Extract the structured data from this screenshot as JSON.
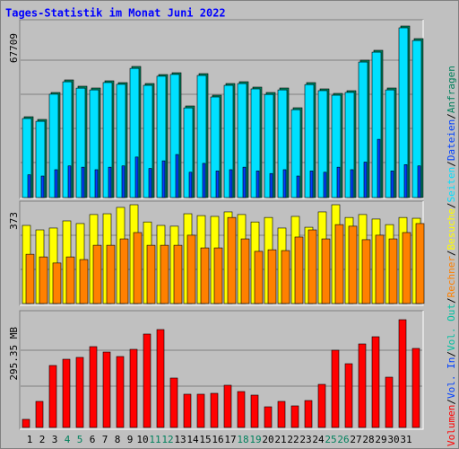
{
  "chart_data": [
    {
      "type": "bar",
      "title": "Tages-Statistik im Monat Juni 2022",
      "ylim": [
        0,
        67709
      ],
      "yticks": [
        67709
      ],
      "series": [
        {
          "name": "Anfragen",
          "color": "#00805c",
          "values": [
            31905,
            30842,
            41477,
            46440,
            43958,
            43249,
            46085,
            45376,
            51757,
            45022,
            48567,
            49276,
            36159,
            48921,
            40413,
            45022,
            45731,
            43604,
            41477,
            43249,
            35450,
            45376,
            42895,
            41122,
            42186,
            54239,
            58138,
            43249,
            67709,
            62747,
            null
          ]
        },
        {
          "name": "Dateien",
          "color": "#0040ff",
          "values": [
            9000,
            8500,
            11000,
            12500,
            12000,
            11000,
            12000,
            12500,
            16000,
            11500,
            14500,
            17000,
            10000,
            13500,
            10500,
            11000,
            12000,
            10500,
            9500,
            11000,
            8500,
            10500,
            10000,
            12000,
            11000,
            14000,
            23000,
            10500,
            13000,
            12500,
            null
          ]
        },
        {
          "name": "Seiten",
          "color": "#00e0ff",
          "values": [
            31200,
            30100,
            40800,
            45700,
            43200,
            42500,
            45400,
            44700,
            51000,
            44300,
            47900,
            48600,
            35400,
            48200,
            39700,
            44300,
            45000,
            42900,
            40700,
            42500,
            34700,
            44600,
            42200,
            40400,
            41500,
            53500,
            57400,
            42500,
            67000,
            62000,
            null
          ]
        }
      ]
    },
    {
      "type": "bar",
      "ylim": [
        0,
        373
      ],
      "yticks": [
        373
      ],
      "series": [
        {
          "name": "Besuche",
          "color": "#ffff00",
          "values": [
            295,
            278,
            285,
            312,
            302,
            336,
            339,
            363,
            373,
            308,
            295,
            292,
            339,
            332,
            329,
            346,
            336,
            308,
            325,
            285,
            329,
            288,
            346,
            373,
            325,
            336,
            319,
            298,
            325,
            322,
            null
          ]
        },
        {
          "name": "Rechner",
          "color": "#ff8000",
          "values": [
            186,
            176,
            153,
            176,
            166,
            220,
            220,
            244,
            268,
            220,
            220,
            220,
            258,
            210,
            210,
            325,
            244,
            197,
            203,
            200,
            251,
            278,
            244,
            298,
            292,
            241,
            258,
            244,
            268,
            302,
            null
          ]
        }
      ]
    },
    {
      "type": "bar",
      "ylim": [
        0,
        295.35
      ],
      "yticks": [
        {
          "value": 295.35,
          "label": "295.35 MB"
        }
      ],
      "categories": [
        "1",
        "2",
        "3",
        "4",
        "5",
        "6",
        "7",
        "8",
        "9",
        "10",
        "11",
        "12",
        "13",
        "14",
        "15",
        "16",
        "17",
        "18",
        "19",
        "20",
        "21",
        "22",
        "23",
        "24",
        "25",
        "26",
        "27",
        "28",
        "29",
        "30",
        "31"
      ],
      "highlight_color": "#00805c",
      "highlight_indices": [
        3,
        4,
        10,
        11,
        17,
        18,
        24,
        25
      ],
      "series": [
        {
          "name": "Volumen",
          "color": "#ff0000",
          "values": [
            22.2,
            71.4,
            169.8,
            187.0,
            192.0,
            221.5,
            206.7,
            194.4,
            214.1,
            256.0,
            268.3,
            135.4,
            91.1,
            91.1,
            93.5,
            115.7,
            98.4,
            88.6,
            56.6,
            71.4,
            59.1,
            73.8,
            118.1,
            211.7,
            174.7,
            228.9,
            248.6,
            137.8,
            295.35,
            216.6,
            null
          ]
        }
      ],
      "legend_extra": [
        {
          "name": "Vol. In",
          "color": "#0040ff"
        },
        {
          "name": "Vol. Out",
          "color": "#00c0a0"
        }
      ],
      "legend_separator": "/"
    }
  ]
}
